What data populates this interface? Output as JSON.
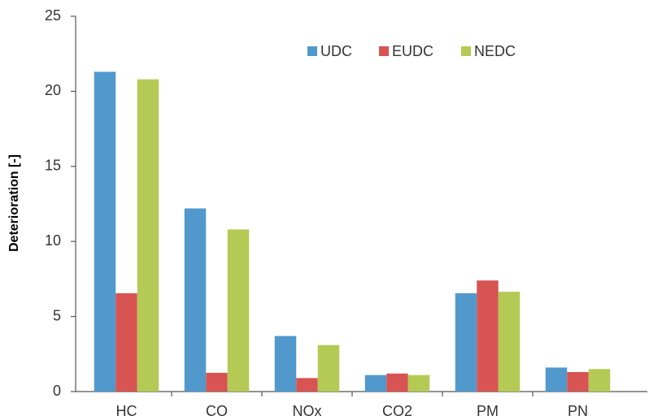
{
  "chart_data": {
    "type": "bar",
    "y_label": "Deterioration [-]",
    "categories": [
      "HC",
      "CO",
      "NOx",
      "CO2",
      "PM",
      "PN"
    ],
    "series": [
      {
        "name": "UDC",
        "color": "#5199cc",
        "values": [
          21.3,
          12.2,
          3.7,
          1.1,
          6.55,
          1.6
        ]
      },
      {
        "name": "EUDC",
        "color": "#d75452",
        "values": [
          6.55,
          1.25,
          0.9,
          1.2,
          7.4,
          1.3
        ]
      },
      {
        "name": "NEDC",
        "color": "#b5c955",
        "values": [
          20.8,
          10.8,
          3.1,
          1.1,
          6.65,
          1.5
        ]
      }
    ],
    "ylim": [
      0,
      25
    ],
    "yticks": [
      0,
      5,
      10,
      15,
      20,
      25
    ],
    "legend": "top-right"
  }
}
